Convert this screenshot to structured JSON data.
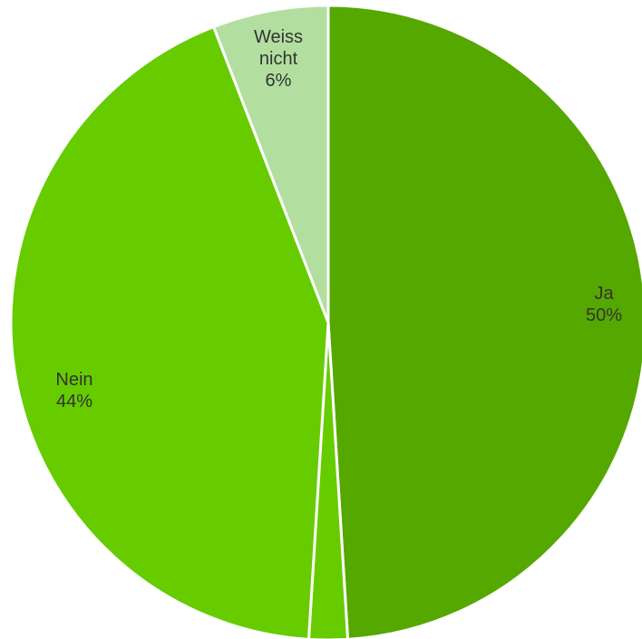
{
  "chart_data": {
    "type": "pie",
    "title": "",
    "slices": [
      {
        "label_lines": [
          "Ja"
        ],
        "value": 50,
        "value_text": "50%",
        "color": "#55a800"
      },
      {
        "label_lines": [],
        "value": 2,
        "value_text": "",
        "color": "#66cc00"
      },
      {
        "label_lines": [
          "Nein"
        ],
        "value": 44,
        "value_text": "44%",
        "color": "#66cc00"
      },
      {
        "label_lines": [
          "Weiss",
          "nicht"
        ],
        "value": 6,
        "value_text": "6%",
        "color": "#b2df9f"
      }
    ],
    "start_angle_deg": 0,
    "direction": "clockwise",
    "border_color": "#ffffff",
    "legend": "none"
  }
}
